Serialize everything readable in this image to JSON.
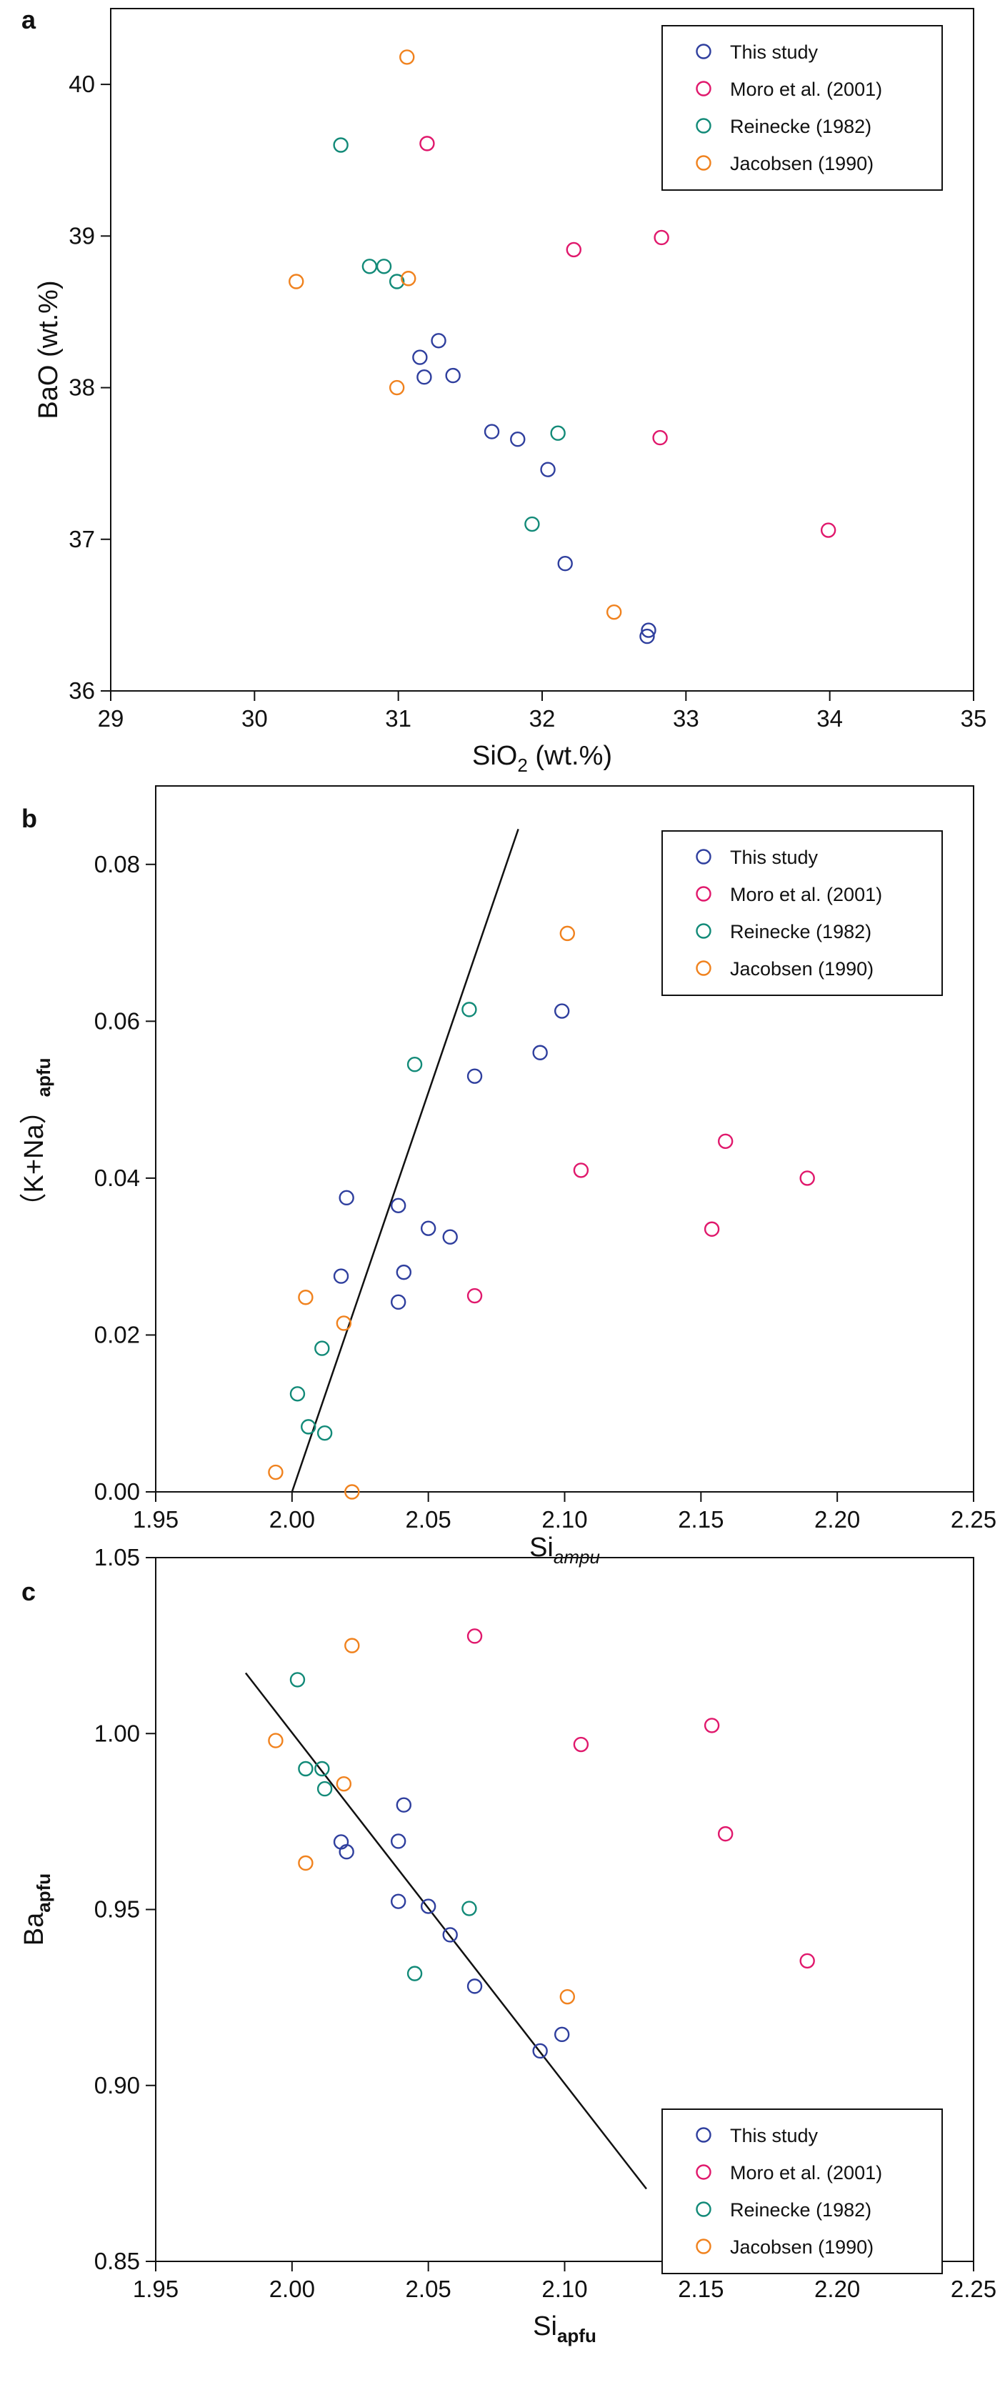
{
  "figure": {
    "panel_labels": [
      "a",
      "b",
      "c"
    ]
  },
  "legend_entries": [
    {
      "name": "This study",
      "color": "#2f3f9e"
    },
    {
      "name": "Moro et al. (2001)",
      "color": "#e0186c"
    },
    {
      "name": "Reinecke (1982)",
      "color": "#128a78"
    },
    {
      "name": "Jacobsen (1990)",
      "color": "#f0821e"
    }
  ],
  "chart_data": [
    {
      "type": "scatter",
      "panel": "a",
      "xlabel": {
        "main": "SiO",
        "sub": "2",
        "rest": " (wt.%)"
      },
      "ylabel": {
        "main": "BaO (wt.%)",
        "sub": ""
      },
      "xlim": [
        29,
        35
      ],
      "ylim": [
        36,
        40.5
      ],
      "xticks": [
        29,
        30,
        31,
        32,
        33,
        34,
        35
      ],
      "xtick_labels": [
        "29",
        "30",
        "31",
        "32",
        "33",
        "34",
        "35"
      ],
      "yticks": [
        36,
        37,
        38,
        39,
        40
      ],
      "ytick_labels": [
        "36",
        "37",
        "38",
        "39",
        "40"
      ],
      "legend_position": "top-right",
      "series": [
        {
          "name": "This study",
          "x": [
            31.15,
            31.28,
            31.18,
            31.38,
            31.65,
            31.83,
            32.04,
            32.16,
            32.74,
            32.73
          ],
          "y": [
            38.2,
            38.31,
            38.07,
            38.08,
            37.71,
            37.66,
            37.46,
            36.84,
            36.4,
            36.36
          ]
        },
        {
          "name": "Moro et al. (2001)",
          "x": [
            31.2,
            32.22,
            32.83,
            32.82,
            33.99
          ],
          "y": [
            39.61,
            38.91,
            38.99,
            37.67,
            37.06
          ]
        },
        {
          "name": "Reinecke (1982)",
          "x": [
            30.6,
            30.8,
            30.9,
            30.99,
            32.11,
            31.93
          ],
          "y": [
            39.6,
            38.8,
            38.8,
            38.7,
            37.7,
            37.1
          ]
        },
        {
          "name": "Jacobsen (1990)",
          "x": [
            31.06,
            30.29,
            31.07,
            30.99,
            32.5
          ],
          "y": [
            40.18,
            38.7,
            38.72,
            38.0,
            36.52
          ]
        }
      ],
      "lines": []
    },
    {
      "type": "scatter",
      "panel": "b",
      "xlabel": {
        "main": "Si",
        "sub": "ampu",
        "sub_style": "italic",
        "rest": ""
      },
      "ylabel": {
        "main": "（K+Na）",
        "sub": "apfu"
      },
      "xlim": [
        1.95,
        2.25
      ],
      "ylim": [
        0.0,
        0.09
      ],
      "xticks": [
        1.95,
        2.0,
        2.05,
        2.1,
        2.15,
        2.2,
        2.25
      ],
      "xtick_labels": [
        "1.95",
        "2.00",
        "2.05",
        "2.10",
        "2.15",
        "2.20",
        "2.25"
      ],
      "yticks": [
        0.0,
        0.02,
        0.04,
        0.06,
        0.08
      ],
      "ytick_labels": [
        "0.00",
        "0.02",
        "0.04",
        "0.06",
        "0.08"
      ],
      "legend_position": "top-right",
      "series": [
        {
          "name": "This study",
          "x": [
            2.02,
            2.018,
            2.039,
            2.041,
            2.039,
            2.05,
            2.058,
            2.067,
            2.091,
            2.099
          ],
          "y": [
            0.0375,
            0.0275,
            0.0365,
            0.028,
            0.0242,
            0.0336,
            0.0325,
            0.053,
            0.056,
            0.0613
          ]
        },
        {
          "name": "Moro et al. (2001)",
          "x": [
            2.067,
            2.106,
            2.154,
            2.159,
            2.189
          ],
          "y": [
            0.025,
            0.041,
            0.0335,
            0.0447,
            0.04
          ]
        },
        {
          "name": "Reinecke (1982)",
          "x": [
            2.002,
            2.006,
            2.011,
            2.012,
            2.045,
            2.065
          ],
          "y": [
            0.0125,
            0.0083,
            0.0183,
            0.0075,
            0.0545,
            0.0615
          ]
        },
        {
          "name": "Jacobsen (1990)",
          "x": [
            1.994,
            2.005,
            2.019,
            2.022,
            2.101
          ],
          "y": [
            0.0025,
            0.0248,
            0.0215,
            0.0,
            0.0712
          ]
        }
      ],
      "lines": [
        {
          "x": [
            2.0,
            2.083
          ],
          "y": [
            0.0,
            0.0845
          ]
        }
      ]
    },
    {
      "type": "scatter",
      "panel": "c",
      "xlabel": {
        "main": "Si",
        "sub": "apfu",
        "sub_style": "bold",
        "rest": ""
      },
      "ylabel": {
        "main": "Ba",
        "sub": "apfu"
      },
      "xlim": [
        1.95,
        2.25
      ],
      "ylim": [
        0.85,
        1.05
      ],
      "xticks": [
        1.95,
        2.0,
        2.05,
        2.1,
        2.15,
        2.2,
        2.25
      ],
      "xtick_labels": [
        "1.95",
        "2.00",
        "2.05",
        "2.10",
        "2.15",
        "2.20",
        "2.25"
      ],
      "yticks": [
        0.85,
        0.9,
        0.95,
        1.0,
        1.05
      ],
      "ytick_labels": [
        "0.85",
        "0.90",
        "0.95",
        "1.00",
        "1.05"
      ],
      "legend_position": "bottom-right",
      "series": [
        {
          "name": "This study",
          "x": [
            2.018,
            2.02,
            2.039,
            2.041,
            2.039,
            2.05,
            2.058,
            2.067,
            2.091,
            2.099
          ],
          "y": [
            0.9692,
            0.9664,
            0.9523,
            0.9797,
            0.9694,
            0.9509,
            0.9428,
            0.9282,
            0.9098,
            0.9145
          ]
        },
        {
          "name": "Moro et al. (2001)",
          "x": [
            2.067,
            2.106,
            2.154,
            2.159,
            2.189
          ],
          "y": [
            1.0277,
            0.9969,
            1.0023,
            0.9715,
            0.9354
          ]
        },
        {
          "name": "Reinecke (1982)",
          "x": [
            2.002,
            2.005,
            2.011,
            2.012,
            2.045,
            2.065
          ],
          "y": [
            1.0153,
            0.99,
            0.99,
            0.9843,
            0.9318,
            0.9503
          ]
        },
        {
          "name": "Jacobsen (1990)",
          "x": [
            1.994,
            2.005,
            2.019,
            2.022,
            2.101
          ],
          "y": [
            0.998,
            0.9632,
            0.9857,
            1.025,
            0.9252
          ]
        }
      ],
      "lines": [
        {
          "x": [
            1.983,
            2.13
          ],
          "y": [
            1.0172,
            0.8706
          ]
        }
      ]
    }
  ]
}
